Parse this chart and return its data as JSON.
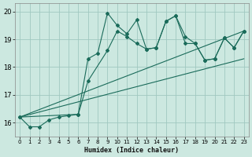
{
  "xlabel": "Humidex (Indice chaleur)",
  "bg_color": "#cce8e0",
  "grid_color": "#a0c8c0",
  "line_color": "#1a6b5a",
  "xlim": [
    -0.5,
    23.5
  ],
  "ylim": [
    15.5,
    20.3
  ],
  "yticks": [
    16,
    17,
    18,
    19,
    20
  ],
  "xticks": [
    0,
    1,
    2,
    3,
    4,
    5,
    6,
    7,
    8,
    9,
    10,
    11,
    12,
    13,
    14,
    15,
    16,
    17,
    18,
    19,
    20,
    21,
    22,
    23
  ],
  "series1_x": [
    0,
    1,
    2,
    3,
    4,
    5,
    6,
    7,
    8,
    9,
    10,
    11,
    12,
    13,
    14,
    15,
    16,
    17,
    18,
    19,
    20,
    21,
    22,
    23
  ],
  "series1_y": [
    16.2,
    15.85,
    15.85,
    16.1,
    16.2,
    16.25,
    16.3,
    18.3,
    18.5,
    19.95,
    19.5,
    19.2,
    19.7,
    18.65,
    18.7,
    19.65,
    19.85,
    19.1,
    18.85,
    18.25,
    18.3,
    19.05,
    18.7,
    19.3
  ],
  "series2_x": [
    0,
    6,
    7,
    9,
    10,
    11,
    12,
    13,
    14,
    15,
    16,
    17,
    18,
    19,
    20,
    21,
    22,
    23
  ],
  "series2_y": [
    16.2,
    16.3,
    17.5,
    18.6,
    19.3,
    19.1,
    18.85,
    18.65,
    18.7,
    19.65,
    19.85,
    18.85,
    18.85,
    18.25,
    18.3,
    19.05,
    18.7,
    19.3
  ],
  "series3_x": [
    0,
    23
  ],
  "series3_y": [
    16.2,
    19.3
  ],
  "series4_x": [
    0,
    23
  ],
  "series4_y": [
    16.2,
    18.3
  ]
}
